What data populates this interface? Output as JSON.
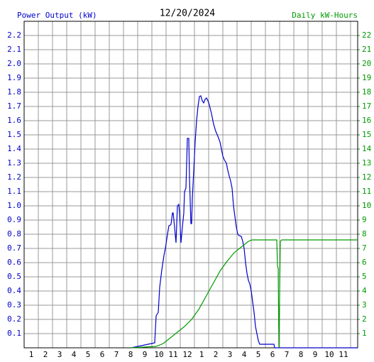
{
  "chart_data": {
    "type": "line",
    "title": "12/20/2024",
    "y_label": "Power Output (kW)",
    "y2_label": "Daily kW-Hours",
    "xlim": [
      0.5,
      24
    ],
    "xticks": [
      1,
      2,
      3,
      4,
      5,
      6,
      7,
      8,
      9,
      10,
      11,
      12,
      {
        "value": 13,
        "label": "1"
      },
      {
        "value": 14,
        "label": "2"
      },
      {
        "value": 15,
        "label": "3"
      },
      {
        "value": 16,
        "label": "4"
      },
      {
        "value": 17,
        "label": "5"
      },
      {
        "value": 18,
        "label": "6"
      },
      {
        "value": 19,
        "label": "7"
      },
      {
        "value": 20,
        "label": "8"
      },
      {
        "value": 21,
        "label": "9"
      },
      {
        "value": 22,
        "label": "10"
      },
      {
        "value": 23,
        "label": "11"
      }
    ],
    "ylim": [
      0,
      2.3
    ],
    "yticks": [
      0.1,
      0.2,
      0.3,
      0.4,
      0.5,
      0.6,
      0.7,
      0.8,
      0.9,
      {
        "value": 1.0,
        "label": "1.0"
      },
      1.1,
      1.2,
      1.3,
      1.4,
      1.5,
      1.6,
      1.7,
      1.8,
      1.9,
      {
        "value": 2.0,
        "label": "2.0"
      },
      2.1,
      2.2
    ],
    "y2lim": [
      0,
      23
    ],
    "y2ticks": [
      1,
      2,
      3,
      4,
      5,
      6,
      7,
      8,
      9,
      10,
      11,
      12,
      13,
      14,
      15,
      16,
      17,
      18,
      19,
      20,
      21,
      22
    ],
    "grid": true,
    "series": [
      {
        "name": "Power Output (kW)",
        "color": "#0000cc",
        "x": [
          8.05,
          9.7,
          9.8,
          9.95,
          10.05,
          10.2,
          10.35,
          10.45,
          10.6,
          10.7,
          10.8,
          10.85,
          10.95,
          11.0,
          11.1,
          11.2,
          11.3,
          11.4,
          11.45,
          11.55,
          11.65,
          11.75,
          11.8,
          11.9,
          11.95,
          12.0,
          12.1,
          12.15,
          12.25,
          12.3,
          12.35,
          12.45,
          12.55,
          12.65,
          12.75,
          12.85,
          12.95,
          13.05,
          13.15,
          13.25,
          13.35,
          13.45,
          13.55,
          13.7,
          13.85,
          14.0,
          14.15,
          14.3,
          14.4,
          14.5,
          14.6,
          14.75,
          14.85,
          14.95,
          15.05,
          15.15,
          15.25,
          15.35,
          15.45,
          15.55,
          15.65,
          15.8,
          15.9,
          16.0,
          16.1,
          16.2,
          16.3,
          16.4,
          16.5,
          16.6,
          16.7,
          16.8,
          16.9,
          17.0,
          17.1,
          18.1,
          18.15,
          24
        ],
        "values": [
          0,
          0.035,
          0.225,
          0.25,
          0.425,
          0.55,
          0.65,
          0.7,
          0.8,
          0.86,
          0.865,
          0.87,
          0.95,
          0.95,
          0.85,
          0.74,
          1.0,
          1.01,
          0.95,
          0.74,
          0.85,
          0.95,
          1.1,
          1.125,
          1.3,
          1.475,
          1.475,
          1.2,
          0.875,
          0.875,
          1.05,
          1.25,
          1.45,
          1.6,
          1.7,
          1.77,
          1.775,
          1.74,
          1.725,
          1.75,
          1.76,
          1.74,
          1.71,
          1.65,
          1.575,
          1.525,
          1.49,
          1.45,
          1.4,
          1.35,
          1.325,
          1.3,
          1.25,
          1.21,
          1.175,
          1.125,
          1.0,
          0.925,
          0.85,
          0.8,
          0.79,
          0.785,
          0.75,
          0.7,
          0.6,
          0.525,
          0.475,
          0.45,
          0.4,
          0.325,
          0.25,
          0.15,
          0.1,
          0.05,
          0.025,
          0.025,
          0,
          0
        ]
      },
      {
        "name": "Daily kW-Hours",
        "color": "#009900",
        "axis": "y2",
        "x": [
          8.05,
          9.8,
          10.3,
          10.8,
          11.3,
          11.8,
          12.3,
          12.8,
          13.3,
          13.8,
          14.3,
          14.8,
          15.3,
          15.8,
          16.3,
          16.55,
          18.3,
          18.35,
          18.4,
          18.45,
          18.55,
          18.65,
          24
        ],
        "values": [
          0,
          0.1,
          0.3,
          0.7,
          1.1,
          1.5,
          2.0,
          2.7,
          3.6,
          4.5,
          5.4,
          6.1,
          6.7,
          7.1,
          7.5,
          7.6,
          7.6,
          5.75,
          5.6,
          0,
          7.5,
          7.6,
          7.6
        ]
      }
    ]
  }
}
